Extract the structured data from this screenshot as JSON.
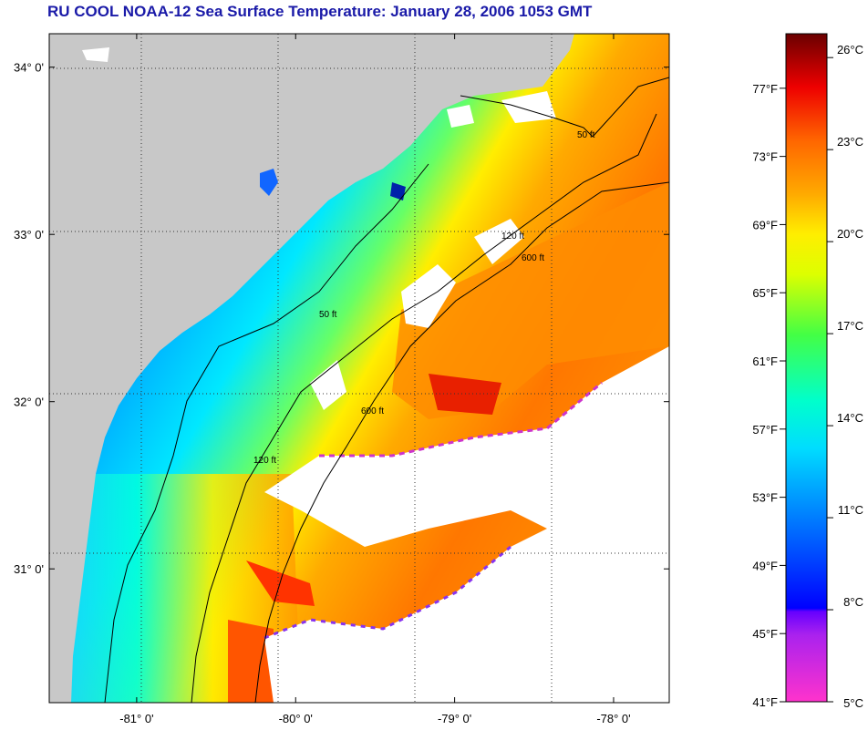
{
  "title": "RU COOL  NOAA-12  Sea Surface Temperature:  January 28, 2006 1053 GMT",
  "map": {
    "lat_ticks": [
      {
        "label": "34° 0'",
        "value": 34.0
      },
      {
        "label": "33° 0'",
        "value": 33.0
      },
      {
        "label": "32° 0'",
        "value": 32.0
      },
      {
        "label": "31° 0'",
        "value": 31.0
      }
    ],
    "lon_ticks": [
      {
        "label": "-81° 0'",
        "value": -81.0
      },
      {
        "label": "-80° 0'",
        "value": -80.0
      },
      {
        "label": "-79° 0'",
        "value": -79.0
      },
      {
        "label": "-78° 0'",
        "value": -78.0
      }
    ],
    "lon_range": [
      -81.55,
      -77.65
    ],
    "lat_range": [
      30.2,
      34.2
    ],
    "land_color": "#c8c8c8",
    "cloud_color": "#ffffff",
    "contour_labels": [
      "50 ft",
      "120 ft",
      "600 ft"
    ]
  },
  "colorbar": {
    "colors": [
      "#ff33cc",
      "#8800ee",
      "#0000ff",
      "#0099ff",
      "#00ffee",
      "#33ff66",
      "#ffff00",
      "#ff9900",
      "#ff3300",
      "#cc0000",
      "#700000"
    ],
    "fahrenheit": [
      {
        "label": "77°F",
        "value": 77
      },
      {
        "label": "73°F",
        "value": 73
      },
      {
        "label": "69°F",
        "value": 69
      },
      {
        "label": "65°F",
        "value": 65
      },
      {
        "label": "61°F",
        "value": 61
      },
      {
        "label": "57°F",
        "value": 57
      },
      {
        "label": "53°F",
        "value": 53
      },
      {
        "label": "49°F",
        "value": 49
      },
      {
        "label": "45°F",
        "value": 45
      },
      {
        "label": "41°F",
        "value": 41
      }
    ],
    "celsius": [
      {
        "label": "26°C",
        "value": 26
      },
      {
        "label": "23°C",
        "value": 23
      },
      {
        "label": "20°C",
        "value": 20
      },
      {
        "label": "17°C",
        "value": 17
      },
      {
        "label": "14°C",
        "value": 14
      },
      {
        "label": "11°C",
        "value": 11
      },
      {
        "label": "8°C",
        "value": 8
      },
      {
        "label": "5°C",
        "value": 5
      }
    ]
  }
}
